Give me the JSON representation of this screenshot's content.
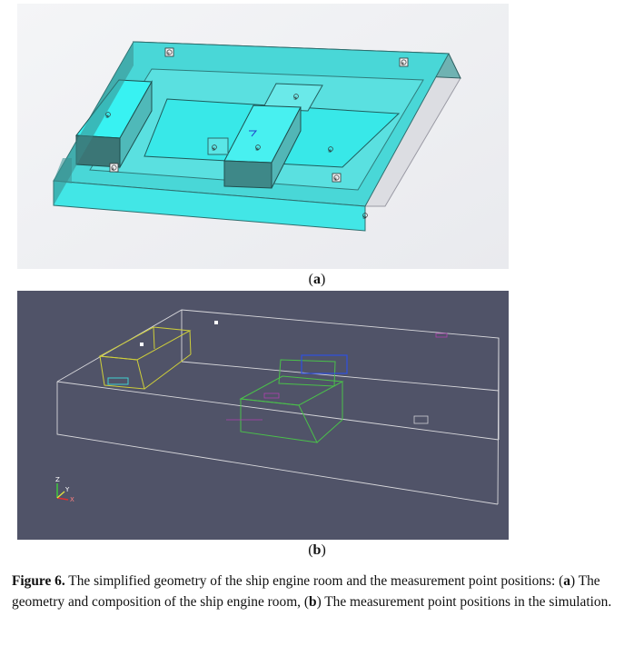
{
  "panels": {
    "a": {
      "label_open": "(",
      "label_letter": "a",
      "label_close": ")"
    },
    "b": {
      "label_open": "(",
      "label_letter": "b",
      "label_close": ")"
    }
  },
  "caption": {
    "figure_label": "Figure 6.",
    "text_main": " The simplified geometry of the ship engine room and the measurement point positions: ",
    "a_open": "(",
    "a_letter": "a",
    "a_close": ")",
    "text_a": " The geometry and composition of the ship engine room, ",
    "b_open": "(",
    "b_letter": "b",
    "b_close": ")",
    "text_b": " The measurement point positions in the simulation."
  },
  "markers_a": [
    "⑩",
    "⑦",
    "⑨",
    "④",
    "②",
    "③",
    "⑤",
    "⑥",
    "⑧",
    "①"
  ],
  "axes_b": {
    "z": "Z",
    "y": "Y",
    "x": "X"
  },
  "colors": {
    "cyan": "#3ff0f0",
    "teal": "#3f8f8f",
    "panel_b_bg": "#505368"
  }
}
